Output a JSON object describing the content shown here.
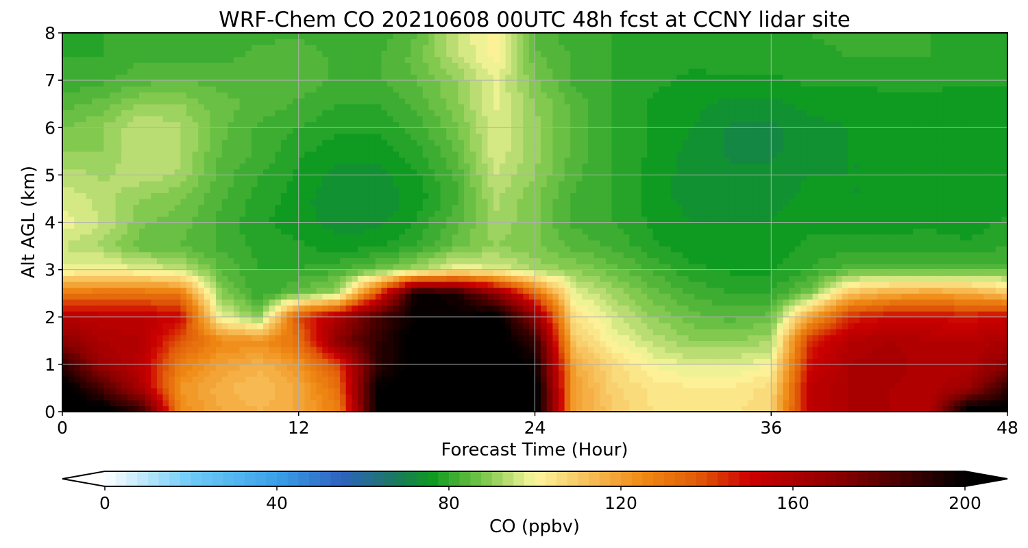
{
  "chart_data": {
    "type": "heatmap",
    "subtype": "filled-contour",
    "title": "WRF-Chem CO  20210608 00UTC 48h fcst at CCNY lidar site",
    "xlabel": "Forecast Time (Hour)",
    "ylabel": "Alt AGL (km)",
    "xlim": [
      0,
      48
    ],
    "ylim": [
      0,
      8
    ],
    "xticks": [
      "0",
      "12",
      "24",
      "36",
      "48"
    ],
    "yticks": [
      "0",
      "1",
      "2",
      "3",
      "4",
      "5",
      "6",
      "7",
      "8"
    ],
    "grid": true,
    "x": [
      0,
      2,
      4,
      6,
      8,
      10,
      12,
      14,
      16,
      18,
      20,
      22,
      24,
      26,
      28,
      30,
      32,
      34,
      36,
      38,
      40,
      42,
      44,
      46,
      48
    ],
    "y": [
      0,
      0.5,
      1,
      1.5,
      2,
      2.5,
      3,
      3.5,
      4,
      4.5,
      5,
      5.5,
      6,
      6.5,
      7,
      7.5,
      8
    ],
    "z": [
      [
        205,
        205,
        190,
        125,
        118,
        115,
        118,
        128,
        200,
        205,
        205,
        205,
        205,
        120,
        110,
        105,
        104,
        104,
        108,
        155,
        160,
        160,
        158,
        205,
        205
      ],
      [
        205,
        185,
        160,
        122,
        116,
        112,
        118,
        132,
        200,
        205,
        205,
        205,
        205,
        120,
        108,
        104,
        103,
        103,
        106,
        155,
        160,
        160,
        158,
        165,
        190
      ],
      [
        190,
        165,
        155,
        128,
        120,
        116,
        122,
        140,
        190,
        205,
        205,
        205,
        198,
        118,
        106,
        100,
        97,
        97,
        100,
        150,
        160,
        162,
        158,
        158,
        170
      ],
      [
        170,
        160,
        158,
        138,
        126,
        124,
        132,
        170,
        190,
        205,
        205,
        205,
        190,
        110,
        100,
        94,
        90,
        90,
        92,
        145,
        158,
        160,
        158,
        158,
        160
      ],
      [
        158,
        155,
        155,
        150,
        100,
        88,
        140,
        160,
        185,
        200,
        200,
        205,
        170,
        105,
        96,
        90,
        86,
        84,
        86,
        120,
        145,
        150,
        150,
        148,
        152
      ],
      [
        130,
        132,
        132,
        130,
        90,
        80,
        86,
        92,
        140,
        200,
        195,
        170,
        135,
        98,
        92,
        86,
        82,
        80,
        80,
        88,
        112,
        118,
        120,
        118,
        112
      ],
      [
        98,
        100,
        98,
        95,
        85,
        80,
        80,
        82,
        86,
        92,
        100,
        98,
        92,
        90,
        86,
        82,
        78,
        77,
        77,
        80,
        84,
        84,
        84,
        84,
        84
      ],
      [
        95,
        92,
        86,
        85,
        82,
        79,
        78,
        76,
        77,
        80,
        86,
        90,
        88,
        84,
        82,
        78,
        76,
        76,
        76,
        78,
        79,
        79,
        79,
        78,
        80
      ],
      [
        99,
        95,
        88,
        86,
        82,
        78,
        76,
        74,
        74,
        78,
        84,
        92,
        88,
        82,
        80,
        77,
        75,
        75,
        75,
        77,
        76,
        76,
        77,
        76,
        78
      ],
      [
        97,
        94,
        90,
        88,
        83,
        79,
        76,
        73,
        73,
        76,
        82,
        93,
        88,
        82,
        80,
        76,
        74,
        73,
        74,
        76,
        75,
        75,
        76,
        76,
        76
      ],
      [
        94,
        92,
        94,
        92,
        84,
        80,
        77,
        74,
        74,
        77,
        83,
        95,
        90,
        83,
        80,
        76,
        74,
        73,
        73,
        75,
        75,
        75,
        76,
        76,
        75
      ],
      [
        90,
        90,
        95,
        93,
        85,
        82,
        78,
        76,
        76,
        79,
        85,
        97,
        91,
        84,
        80,
        77,
        74,
        72,
        72,
        74,
        75,
        75,
        76,
        76,
        75
      ],
      [
        87,
        90,
        95,
        93,
        86,
        82,
        80,
        78,
        78,
        81,
        87,
        97,
        91,
        84,
        80,
        77,
        75,
        72,
        72,
        74,
        75,
        76,
        76,
        76,
        75
      ],
      [
        84,
        86,
        90,
        90,
        86,
        84,
        82,
        80,
        80,
        83,
        89,
        98,
        90,
        84,
        80,
        77,
        76,
        74,
        74,
        76,
        76,
        77,
        77,
        76,
        76
      ],
      [
        80,
        82,
        84,
        85,
        84,
        84,
        84,
        82,
        82,
        85,
        90,
        98,
        88,
        82,
        80,
        78,
        77,
        77,
        77,
        78,
        78,
        78,
        78,
        78,
        78
      ],
      [
        80,
        80,
        82,
        82,
        82,
        83,
        84,
        82,
        82,
        86,
        94,
        101,
        86,
        82,
        80,
        79,
        78,
        79,
        79,
        79,
        80,
        80,
        80,
        79,
        79
      ],
      [
        79,
        80,
        81,
        81,
        81,
        82,
        82,
        81,
        81,
        85,
        95,
        102,
        84,
        81,
        80,
        80,
        79,
        80,
        80,
        80,
        81,
        80,
        80,
        80,
        80
      ]
    ],
    "colorbar": {
      "label": "CO  (ppbv)",
      "min": 0,
      "max": 200,
      "ticks": [
        "0",
        "40",
        "80",
        "120",
        "160",
        "200"
      ],
      "extend": "both",
      "stops": [
        {
          "v": 0,
          "c": "#ffffff"
        },
        {
          "v": 20,
          "c": "#6ecbf7"
        },
        {
          "v": 40,
          "c": "#3aa0e8"
        },
        {
          "v": 55,
          "c": "#2f62c0"
        },
        {
          "v": 68,
          "c": "#1a7a5c"
        },
        {
          "v": 76,
          "c": "#0d9a20"
        },
        {
          "v": 88,
          "c": "#7ac64a"
        },
        {
          "v": 100,
          "c": "#fdf79d"
        },
        {
          "v": 112,
          "c": "#f8c15c"
        },
        {
          "v": 125,
          "c": "#ef8a14"
        },
        {
          "v": 138,
          "c": "#e05b08"
        },
        {
          "v": 150,
          "c": "#cc0000"
        },
        {
          "v": 170,
          "c": "#8c0000"
        },
        {
          "v": 190,
          "c": "#300000"
        },
        {
          "v": 200,
          "c": "#000000"
        }
      ]
    }
  }
}
